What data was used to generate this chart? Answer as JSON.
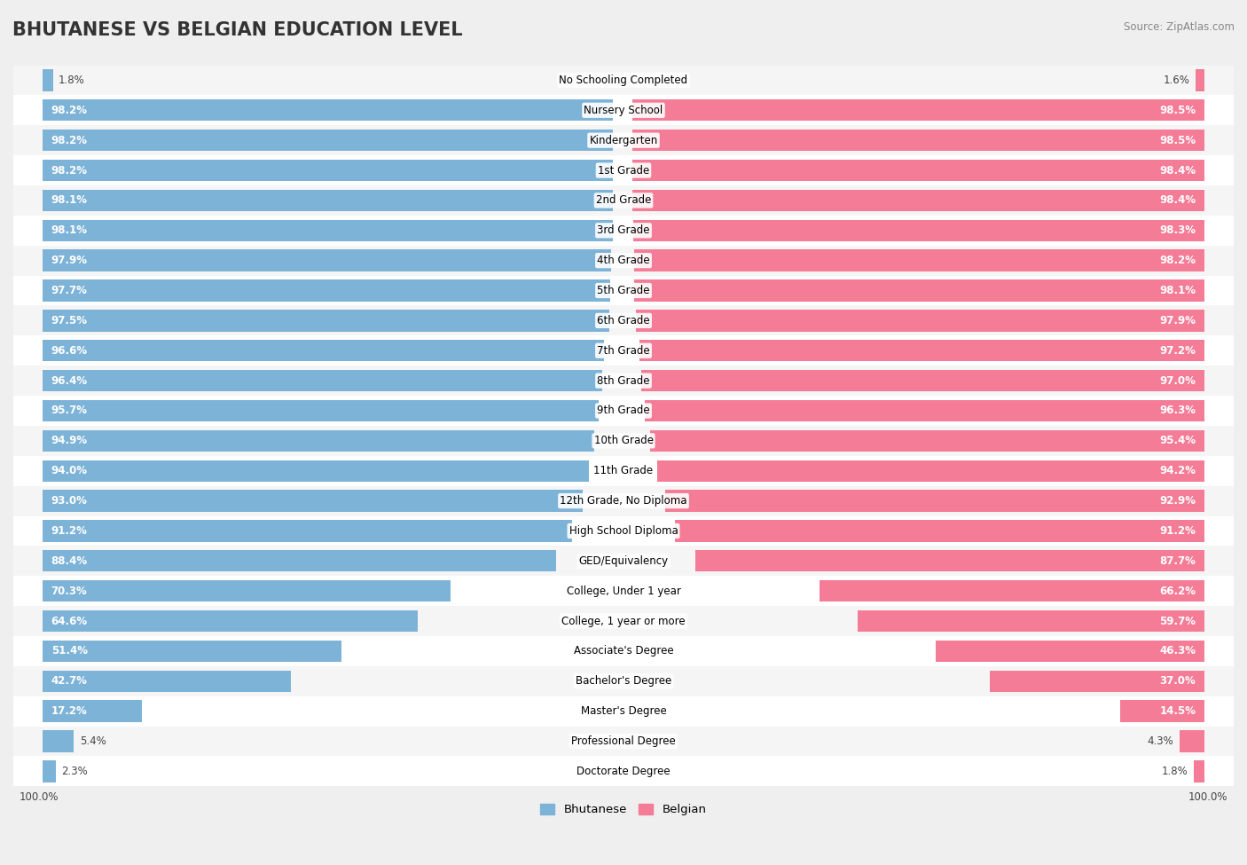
{
  "title": "BHUTANESE VS BELGIAN EDUCATION LEVEL",
  "source": "Source: ZipAtlas.com",
  "categories": [
    "No Schooling Completed",
    "Nursery School",
    "Kindergarten",
    "1st Grade",
    "2nd Grade",
    "3rd Grade",
    "4th Grade",
    "5th Grade",
    "6th Grade",
    "7th Grade",
    "8th Grade",
    "9th Grade",
    "10th Grade",
    "11th Grade",
    "12th Grade, No Diploma",
    "High School Diploma",
    "GED/Equivalency",
    "College, Under 1 year",
    "College, 1 year or more",
    "Associate's Degree",
    "Bachelor's Degree",
    "Master's Degree",
    "Professional Degree",
    "Doctorate Degree"
  ],
  "bhutanese": [
    1.8,
    98.2,
    98.2,
    98.2,
    98.1,
    98.1,
    97.9,
    97.7,
    97.5,
    96.6,
    96.4,
    95.7,
    94.9,
    94.0,
    93.0,
    91.2,
    88.4,
    70.3,
    64.6,
    51.4,
    42.7,
    17.2,
    5.4,
    2.3
  ],
  "belgian": [
    1.6,
    98.5,
    98.5,
    98.4,
    98.4,
    98.3,
    98.2,
    98.1,
    97.9,
    97.2,
    97.0,
    96.3,
    95.4,
    94.2,
    92.9,
    91.2,
    87.7,
    66.2,
    59.7,
    46.3,
    37.0,
    14.5,
    4.3,
    1.8
  ],
  "blue_color": "#7eb3d8",
  "pink_color": "#f47c96",
  "bg_color": "#efefef",
  "row_bg_even": "#f5f5f5",
  "row_bg_odd": "#ffffff",
  "title_fontsize": 15,
  "label_fontsize": 8.5,
  "value_fontsize": 8.5,
  "legend_fontsize": 9.5,
  "max_val": 100.0
}
